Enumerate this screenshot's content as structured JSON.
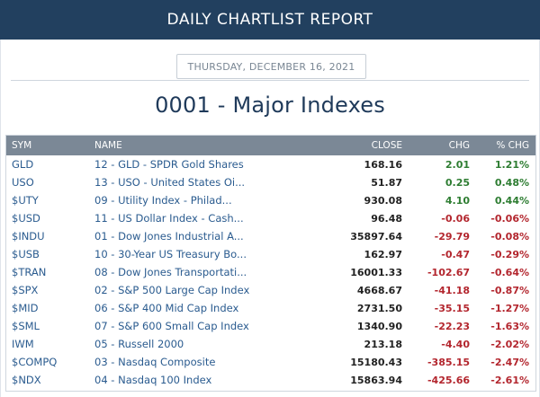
{
  "header": {
    "title": "DAILY CHARTLIST REPORT"
  },
  "report": {
    "date": "THURSDAY, DECEMBER 16, 2021",
    "title": "0001 - Major Indexes"
  },
  "table": {
    "columns": {
      "sym": "SYM",
      "name": "NAME",
      "close": "CLOSE",
      "chg": "CHG",
      "pct": "% CHG"
    },
    "rows": [
      {
        "sym": "GLD",
        "name": "12 - GLD - SPDR Gold Shares",
        "close": "168.16",
        "chg": "2.01",
        "pct": "1.21%",
        "dir": "pos"
      },
      {
        "sym": "USO",
        "name": "13 - USO - United States Oi...",
        "close": "51.87",
        "chg": "0.25",
        "pct": "0.48%",
        "dir": "pos"
      },
      {
        "sym": "$UTY",
        "name": "09 - Utility Index - Philad...",
        "close": "930.08",
        "chg": "4.10",
        "pct": "0.44%",
        "dir": "pos"
      },
      {
        "sym": "$USD",
        "name": "11 - US Dollar Index - Cash...",
        "close": "96.48",
        "chg": "-0.06",
        "pct": "-0.06%",
        "dir": "neg"
      },
      {
        "sym": "$INDU",
        "name": "01 - Dow Jones Industrial A...",
        "close": "35897.64",
        "chg": "-29.79",
        "pct": "-0.08%",
        "dir": "neg"
      },
      {
        "sym": "$USB",
        "name": "10 - 30-Year US Treasury Bo...",
        "close": "162.97",
        "chg": "-0.47",
        "pct": "-0.29%",
        "dir": "neg"
      },
      {
        "sym": "$TRAN",
        "name": "08 - Dow Jones Transportati...",
        "close": "16001.33",
        "chg": "-102.67",
        "pct": "-0.64%",
        "dir": "neg"
      },
      {
        "sym": "$SPX",
        "name": "02 - S&P 500 Large Cap Index",
        "close": "4668.67",
        "chg": "-41.18",
        "pct": "-0.87%",
        "dir": "neg"
      },
      {
        "sym": "$MID",
        "name": "06 - S&P 400 Mid Cap Index",
        "close": "2731.50",
        "chg": "-35.15",
        "pct": "-1.27%",
        "dir": "neg"
      },
      {
        "sym": "$SML",
        "name": "07 - S&P 600 Small Cap Index",
        "close": "1340.90",
        "chg": "-22.23",
        "pct": "-1.63%",
        "dir": "neg"
      },
      {
        "sym": "IWM",
        "name": "05 - Russell 2000",
        "close": "213.18",
        "chg": "-4.40",
        "pct": "-2.02%",
        "dir": "neg"
      },
      {
        "sym": "$COMPQ",
        "name": "03 - Nasdaq Composite",
        "close": "15180.43",
        "chg": "-385.15",
        "pct": "-2.47%",
        "dir": "neg"
      },
      {
        "sym": "$NDX",
        "name": "04 - Nasdaq 100 Index",
        "close": "15863.94",
        "chg": "-425.66",
        "pct": "-2.61%",
        "dir": "neg"
      }
    ]
  },
  "colors": {
    "header_bg": "#22405f",
    "table_head_bg": "#7b8896",
    "positive": "#2e7d32",
    "negative": "#b3262e",
    "link": "#2a5b8f"
  }
}
